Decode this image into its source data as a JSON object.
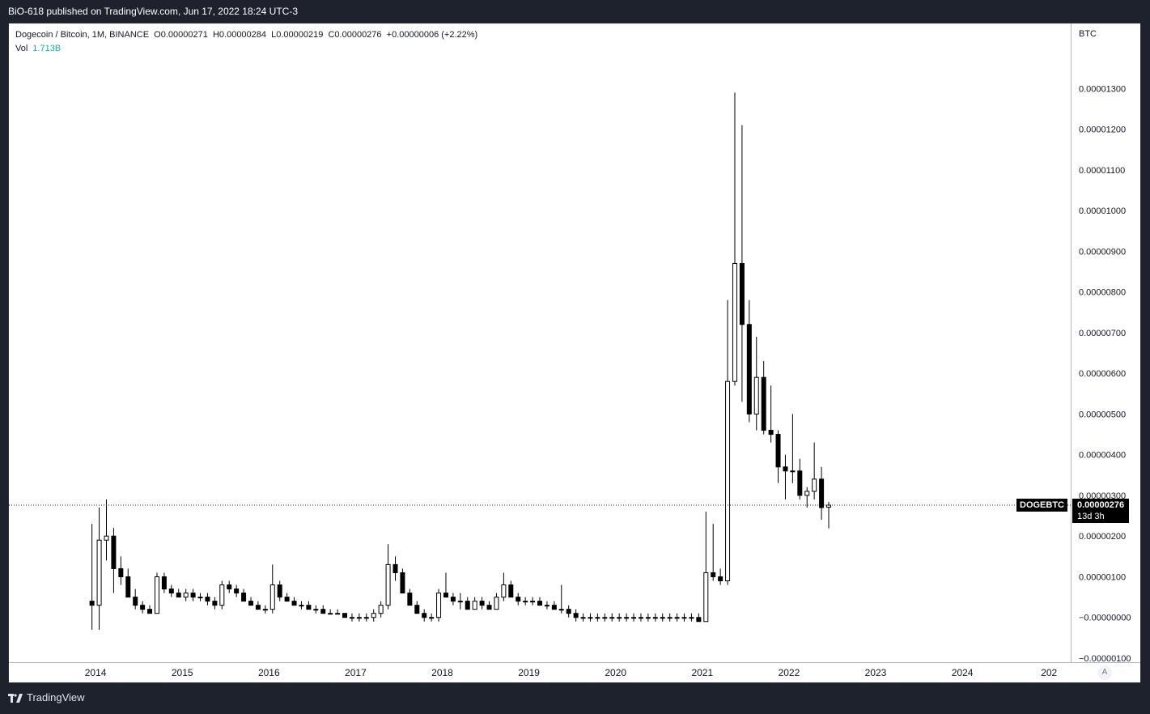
{
  "header": {
    "publish_text": "BiO-618 published on TradingView.com, Jun 17, 2022 18:24 UTC-3"
  },
  "legend": {
    "line": "Dogecoin / Bitcoin, 1M, BINANCE  O0.00000271  H0.00000284  L0.00000219  C0.00000276  +0.00000006 (+2.22%)",
    "vol_label": "Vol",
    "vol_value": "1.713B"
  },
  "price_axis": {
    "currency": "BTC"
  },
  "last_price": {
    "symbol": "DOGEBTC",
    "value": "0.00000276",
    "countdown": "13d 3h"
  },
  "footer": {
    "brand": "TradingView",
    "auto_label": "A"
  },
  "colors": {
    "background": "#1e222d",
    "candle": "#000000",
    "chart_bg": "#ffffff"
  },
  "chart_data": {
    "type": "candlestick",
    "title": "Dogecoin / Bitcoin, 1M, BINANCE",
    "y_unit": "BTC",
    "y_range": [
      -1e-06,
      1.42e-05
    ],
    "y_ticks": [
      "0.00001300",
      "0.00001200",
      "0.00001100",
      "0.00001000",
      "0.00000900",
      "0.00000800",
      "0.00000700",
      "0.00000600",
      "0.00000500",
      "0.00000400",
      "0.00000300",
      "0.00000200",
      "0.00000100",
      "−0.00000000",
      "−0.00000100"
    ],
    "x_ticks": [
      "2014",
      "2015",
      "2016",
      "2017",
      "2018",
      "2019",
      "2020",
      "2021",
      "2022",
      "2023",
      "2024",
      "202"
    ],
    "x_range": [
      "2013-01",
      "2025-04"
    ],
    "grid": false,
    "last_price": 2.76e-06,
    "candles": [
      {
        "t": "2013-12",
        "o": 4e-07,
        "h": 2.3e-06,
        "l": -3e-07,
        "c": 3e-07
      },
      {
        "t": "2014-01",
        "o": 3e-07,
        "h": 2.7e-06,
        "l": -3e-07,
        "c": 1.9e-06
      },
      {
        "t": "2014-02",
        "o": 1.9e-06,
        "h": 2.9e-06,
        "l": 1.4e-06,
        "c": 2e-06
      },
      {
        "t": "2014-03",
        "o": 2e-06,
        "h": 2.2e-06,
        "l": 6e-07,
        "c": 1.2e-06
      },
      {
        "t": "2014-04",
        "o": 1.2e-06,
        "h": 1.5e-06,
        "l": 8e-07,
        "c": 1e-06
      },
      {
        "t": "2014-05",
        "o": 1e-06,
        "h": 1.2e-06,
        "l": 5e-07,
        "c": 5e-07
      },
      {
        "t": "2014-06",
        "o": 5e-07,
        "h": 7e-07,
        "l": 2e-07,
        "c": 3e-07
      },
      {
        "t": "2014-07",
        "o": 3e-07,
        "h": 4e-07,
        "l": 1e-07,
        "c": 2e-07
      },
      {
        "t": "2014-08",
        "o": 2e-07,
        "h": 3e-07,
        "l": 1e-07,
        "c": 1e-07
      },
      {
        "t": "2014-09",
        "o": 1e-07,
        "h": 1.1e-06,
        "l": 1e-07,
        "c": 1e-06
      },
      {
        "t": "2014-10",
        "o": 1e-06,
        "h": 1.1e-06,
        "l": 6e-07,
        "c": 7e-07
      },
      {
        "t": "2014-11",
        "o": 7e-07,
        "h": 8e-07,
        "l": 5e-07,
        "c": 6e-07
      },
      {
        "t": "2014-12",
        "o": 6e-07,
        "h": 7e-07,
        "l": 5e-07,
        "c": 5e-07
      },
      {
        "t": "2015-01",
        "o": 5e-07,
        "h": 7e-07,
        "l": 4e-07,
        "c": 6e-07
      },
      {
        "t": "2015-02",
        "o": 6e-07,
        "h": 7e-07,
        "l": 4e-07,
        "c": 5e-07
      },
      {
        "t": "2015-03",
        "o": 5e-07,
        "h": 6e-07,
        "l": 4e-07,
        "c": 5e-07
      },
      {
        "t": "2015-04",
        "o": 5e-07,
        "h": 6e-07,
        "l": 3e-07,
        "c": 4e-07
      },
      {
        "t": "2015-05",
        "o": 4e-07,
        "h": 5e-07,
        "l": 2e-07,
        "c": 3e-07
      },
      {
        "t": "2015-06",
        "o": 3e-07,
        "h": 9e-07,
        "l": 2e-07,
        "c": 8e-07
      },
      {
        "t": "2015-07",
        "o": 8e-07,
        "h": 9e-07,
        "l": 6e-07,
        "c": 7e-07
      },
      {
        "t": "2015-08",
        "o": 7e-07,
        "h": 8e-07,
        "l": 5e-07,
        "c": 6e-07
      },
      {
        "t": "2015-09",
        "o": 6e-07,
        "h": 7e-07,
        "l": 4e-07,
        "c": 4e-07
      },
      {
        "t": "2015-10",
        "o": 4e-07,
        "h": 5e-07,
        "l": 3e-07,
        "c": 3e-07
      },
      {
        "t": "2015-11",
        "o": 3e-07,
        "h": 4e-07,
        "l": 2e-07,
        "c": 2e-07
      },
      {
        "t": "2015-12",
        "o": 2e-07,
        "h": 3e-07,
        "l": 1e-07,
        "c": 2e-07
      },
      {
        "t": "2016-01",
        "o": 2e-07,
        "h": 1.3e-06,
        "l": 1e-07,
        "c": 8e-07
      },
      {
        "t": "2016-02",
        "o": 8e-07,
        "h": 9e-07,
        "l": 4e-07,
        "c": 5e-07
      },
      {
        "t": "2016-03",
        "o": 5e-07,
        "h": 6e-07,
        "l": 4e-07,
        "c": 4e-07
      },
      {
        "t": "2016-04",
        "o": 4e-07,
        "h": 5e-07,
        "l": 3e-07,
        "c": 3e-07
      },
      {
        "t": "2016-05",
        "o": 3e-07,
        "h": 4e-07,
        "l": 2e-07,
        "c": 3e-07
      },
      {
        "t": "2016-06",
        "o": 3e-07,
        "h": 4e-07,
        "l": 2e-07,
        "c": 2e-07
      },
      {
        "t": "2016-07",
        "o": 2e-07,
        "h": 3e-07,
        "l": 1e-07,
        "c": 2e-07
      },
      {
        "t": "2016-08",
        "o": 2e-07,
        "h": 3e-07,
        "l": 1e-07,
        "c": 1e-07
      },
      {
        "t": "2016-09",
        "o": 1e-07,
        "h": 2e-07,
        "l": 1e-07,
        "c": 1e-07
      },
      {
        "t": "2016-10",
        "o": 1e-07,
        "h": 2e-07,
        "l": 1e-07,
        "c": 1e-07
      },
      {
        "t": "2016-11",
        "o": 1e-07,
        "h": 1e-07,
        "l": 0.0,
        "c": 0.0
      },
      {
        "t": "2016-12",
        "o": 0.0,
        "h": 1e-07,
        "l": -1e-07,
        "c": 0.0
      },
      {
        "t": "2017-01",
        "o": 0.0,
        "h": 1e-07,
        "l": -1e-07,
        "c": 0.0
      },
      {
        "t": "2017-02",
        "o": 0.0,
        "h": 1e-07,
        "l": -1e-07,
        "c": 0.0
      },
      {
        "t": "2017-03",
        "o": 0.0,
        "h": 2e-07,
        "l": -1e-07,
        "c": 1e-07
      },
      {
        "t": "2017-04",
        "o": 1e-07,
        "h": 4e-07,
        "l": 0.0,
        "c": 3e-07
      },
      {
        "t": "2017-05",
        "o": 3e-07,
        "h": 1.8e-06,
        "l": 2e-07,
        "c": 1.3e-06
      },
      {
        "t": "2017-06",
        "o": 1.3e-06,
        "h": 1.5e-06,
        "l": 9e-07,
        "c": 1.1e-06
      },
      {
        "t": "2017-07",
        "o": 1.1e-06,
        "h": 1.2e-06,
        "l": 6e-07,
        "c": 6e-07
      },
      {
        "t": "2017-08",
        "o": 6e-07,
        "h": 7e-07,
        "l": 3e-07,
        "c": 3e-07
      },
      {
        "t": "2017-09",
        "o": 3e-07,
        "h": 4e-07,
        "l": 1e-07,
        "c": 1e-07
      },
      {
        "t": "2017-10",
        "o": 1e-07,
        "h": 2e-07,
        "l": -1e-07,
        "c": 0.0
      },
      {
        "t": "2017-11",
        "o": 0.0,
        "h": 1e-07,
        "l": -1e-07,
        "c": 0.0
      },
      {
        "t": "2017-12",
        "o": 0.0,
        "h": 7e-07,
        "l": -1e-07,
        "c": 6e-07
      },
      {
        "t": "2018-01",
        "o": 6e-07,
        "h": 1.1e-06,
        "l": 5e-07,
        "c": 5e-07
      },
      {
        "t": "2018-02",
        "o": 5e-07,
        "h": 6e-07,
        "l": 3e-07,
        "c": 4e-07
      },
      {
        "t": "2018-03",
        "o": 4e-07,
        "h": 6e-07,
        "l": 2e-07,
        "c": 4e-07
      },
      {
        "t": "2018-04",
        "o": 4e-07,
        "h": 5e-07,
        "l": 2e-07,
        "c": 2e-07
      },
      {
        "t": "2018-05",
        "o": 2e-07,
        "h": 5e-07,
        "l": 2e-07,
        "c": 4e-07
      },
      {
        "t": "2018-06",
        "o": 4e-07,
        "h": 5e-07,
        "l": 2e-07,
        "c": 3e-07
      },
      {
        "t": "2018-07",
        "o": 3e-07,
        "h": 4e-07,
        "l": 2e-07,
        "c": 2e-07
      },
      {
        "t": "2018-08",
        "o": 2e-07,
        "h": 6e-07,
        "l": 2e-07,
        "c": 5e-07
      },
      {
        "t": "2018-09",
        "o": 5e-07,
        "h": 1.1e-06,
        "l": 4e-07,
        "c": 8e-07
      },
      {
        "t": "2018-10",
        "o": 8e-07,
        "h": 9e-07,
        "l": 5e-07,
        "c": 5e-07
      },
      {
        "t": "2018-11",
        "o": 5e-07,
        "h": 6e-07,
        "l": 3e-07,
        "c": 4e-07
      },
      {
        "t": "2018-12",
        "o": 4e-07,
        "h": 5e-07,
        "l": 3e-07,
        "c": 4e-07
      },
      {
        "t": "2019-01",
        "o": 4e-07,
        "h": 5e-07,
        "l": 3e-07,
        "c": 4e-07
      },
      {
        "t": "2019-02",
        "o": 4e-07,
        "h": 5e-07,
        "l": 3e-07,
        "c": 3e-07
      },
      {
        "t": "2019-03",
        "o": 3e-07,
        "h": 4e-07,
        "l": 2e-07,
        "c": 3e-07
      },
      {
        "t": "2019-04",
        "o": 3e-07,
        "h": 4e-07,
        "l": 2e-07,
        "c": 2e-07
      },
      {
        "t": "2019-05",
        "o": 2e-07,
        "h": 8e-07,
        "l": 1e-07,
        "c": 2e-07
      },
      {
        "t": "2019-06",
        "o": 2e-07,
        "h": 3e-07,
        "l": 0.0,
        "c": 1e-07
      },
      {
        "t": "2019-07",
        "o": 1e-07,
        "h": 2e-07,
        "l": -1e-07,
        "c": 0.0
      },
      {
        "t": "2019-08",
        "o": 0.0,
        "h": 1e-07,
        "l": -1e-07,
        "c": 0.0
      },
      {
        "t": "2019-09",
        "o": 0.0,
        "h": 1e-07,
        "l": -1e-07,
        "c": 0.0
      },
      {
        "t": "2019-10",
        "o": 0.0,
        "h": 1e-07,
        "l": -1e-07,
        "c": 0.0
      },
      {
        "t": "2019-11",
        "o": 0.0,
        "h": 1e-07,
        "l": -1e-07,
        "c": 0.0
      },
      {
        "t": "2019-12",
        "o": 0.0,
        "h": 1e-07,
        "l": -1e-07,
        "c": 0.0
      },
      {
        "t": "2020-01",
        "o": 0.0,
        "h": 1e-07,
        "l": -1e-07,
        "c": 0.0
      },
      {
        "t": "2020-02",
        "o": 0.0,
        "h": 1e-07,
        "l": -1e-07,
        "c": 0.0
      },
      {
        "t": "2020-03",
        "o": 0.0,
        "h": 1e-07,
        "l": -1e-07,
        "c": 0.0
      },
      {
        "t": "2020-04",
        "o": 0.0,
        "h": 1e-07,
        "l": -1e-07,
        "c": 0.0
      },
      {
        "t": "2020-05",
        "o": 0.0,
        "h": 1e-07,
        "l": -1e-07,
        "c": 0.0
      },
      {
        "t": "2020-06",
        "o": 0.0,
        "h": 1e-07,
        "l": -1e-07,
        "c": 0.0
      },
      {
        "t": "2020-07",
        "o": 0.0,
        "h": 1e-07,
        "l": -1e-07,
        "c": 0.0
      },
      {
        "t": "2020-08",
        "o": 0.0,
        "h": 1e-07,
        "l": -1e-07,
        "c": 0.0
      },
      {
        "t": "2020-09",
        "o": 0.0,
        "h": 1e-07,
        "l": -1e-07,
        "c": 0.0
      },
      {
        "t": "2020-10",
        "o": 0.0,
        "h": 1e-07,
        "l": -1e-07,
        "c": 0.0
      },
      {
        "t": "2020-11",
        "o": 0.0,
        "h": 1e-07,
        "l": -1e-07,
        "c": 0.0
      },
      {
        "t": "2020-12",
        "o": 0.0,
        "h": 1e-07,
        "l": -1e-07,
        "c": -1e-07
      },
      {
        "t": "2021-01",
        "o": -1e-07,
        "h": 2.6e-06,
        "l": -1e-07,
        "c": 1.1e-06
      },
      {
        "t": "2021-02",
        "o": 1.1e-06,
        "h": 2.3e-06,
        "l": 9e-07,
        "c": 1e-06
      },
      {
        "t": "2021-03",
        "o": 1e-06,
        "h": 1.2e-06,
        "l": 8e-07,
        "c": 9e-07
      },
      {
        "t": "2021-04",
        "o": 9e-07,
        "h": 7.8e-06,
        "l": 8e-07,
        "c": 5.8e-06
      },
      {
        "t": "2021-05",
        "o": 5.8e-06,
        "h": 1.29e-05,
        "l": 5.7e-06,
        "c": 8.7e-06
      },
      {
        "t": "2021-06",
        "o": 8.7e-06,
        "h": 1.21e-05,
        "l": 5.3e-06,
        "c": 7.2e-06
      },
      {
        "t": "2021-07",
        "o": 7.2e-06,
        "h": 7.8e-06,
        "l": 4.8e-06,
        "c": 5e-06
      },
      {
        "t": "2021-08",
        "o": 5e-06,
        "h": 6.9e-06,
        "l": 4.6e-06,
        "c": 5.9e-06
      },
      {
        "t": "2021-09",
        "o": 5.9e-06,
        "h": 6.3e-06,
        "l": 4.5e-06,
        "c": 4.6e-06
      },
      {
        "t": "2021-10",
        "o": 4.6e-06,
        "h": 5.7e-06,
        "l": 4.3e-06,
        "c": 4.5e-06
      },
      {
        "t": "2021-11",
        "o": 4.5e-06,
        "h": 4.6e-06,
        "l": 3.3e-06,
        "c": 3.7e-06
      },
      {
        "t": "2021-12",
        "o": 3.7e-06,
        "h": 4e-06,
        "l": 2.9e-06,
        "c": 3.6e-06
      },
      {
        "t": "2022-01",
        "o": 3.6e-06,
        "h": 5e-06,
        "l": 3.3e-06,
        "c": 3.6e-06
      },
      {
        "t": "2022-02",
        "o": 3.6e-06,
        "h": 3.9e-06,
        "l": 2.9e-06,
        "c": 3e-06
      },
      {
        "t": "2022-03",
        "o": 3e-06,
        "h": 3.2e-06,
        "l": 2.7e-06,
        "c": 3.1e-06
      },
      {
        "t": "2022-04",
        "o": 3.1e-06,
        "h": 4.3e-06,
        "l": 2.9e-06,
        "c": 3.4e-06
      },
      {
        "t": "2022-05",
        "o": 3.4e-06,
        "h": 3.7e-06,
        "l": 2.4e-06,
        "c": 2.7e-06
      },
      {
        "t": "2022-06",
        "o": 2.71e-06,
        "h": 2.84e-06,
        "l": 2.19e-06,
        "c": 2.76e-06
      }
    ]
  }
}
